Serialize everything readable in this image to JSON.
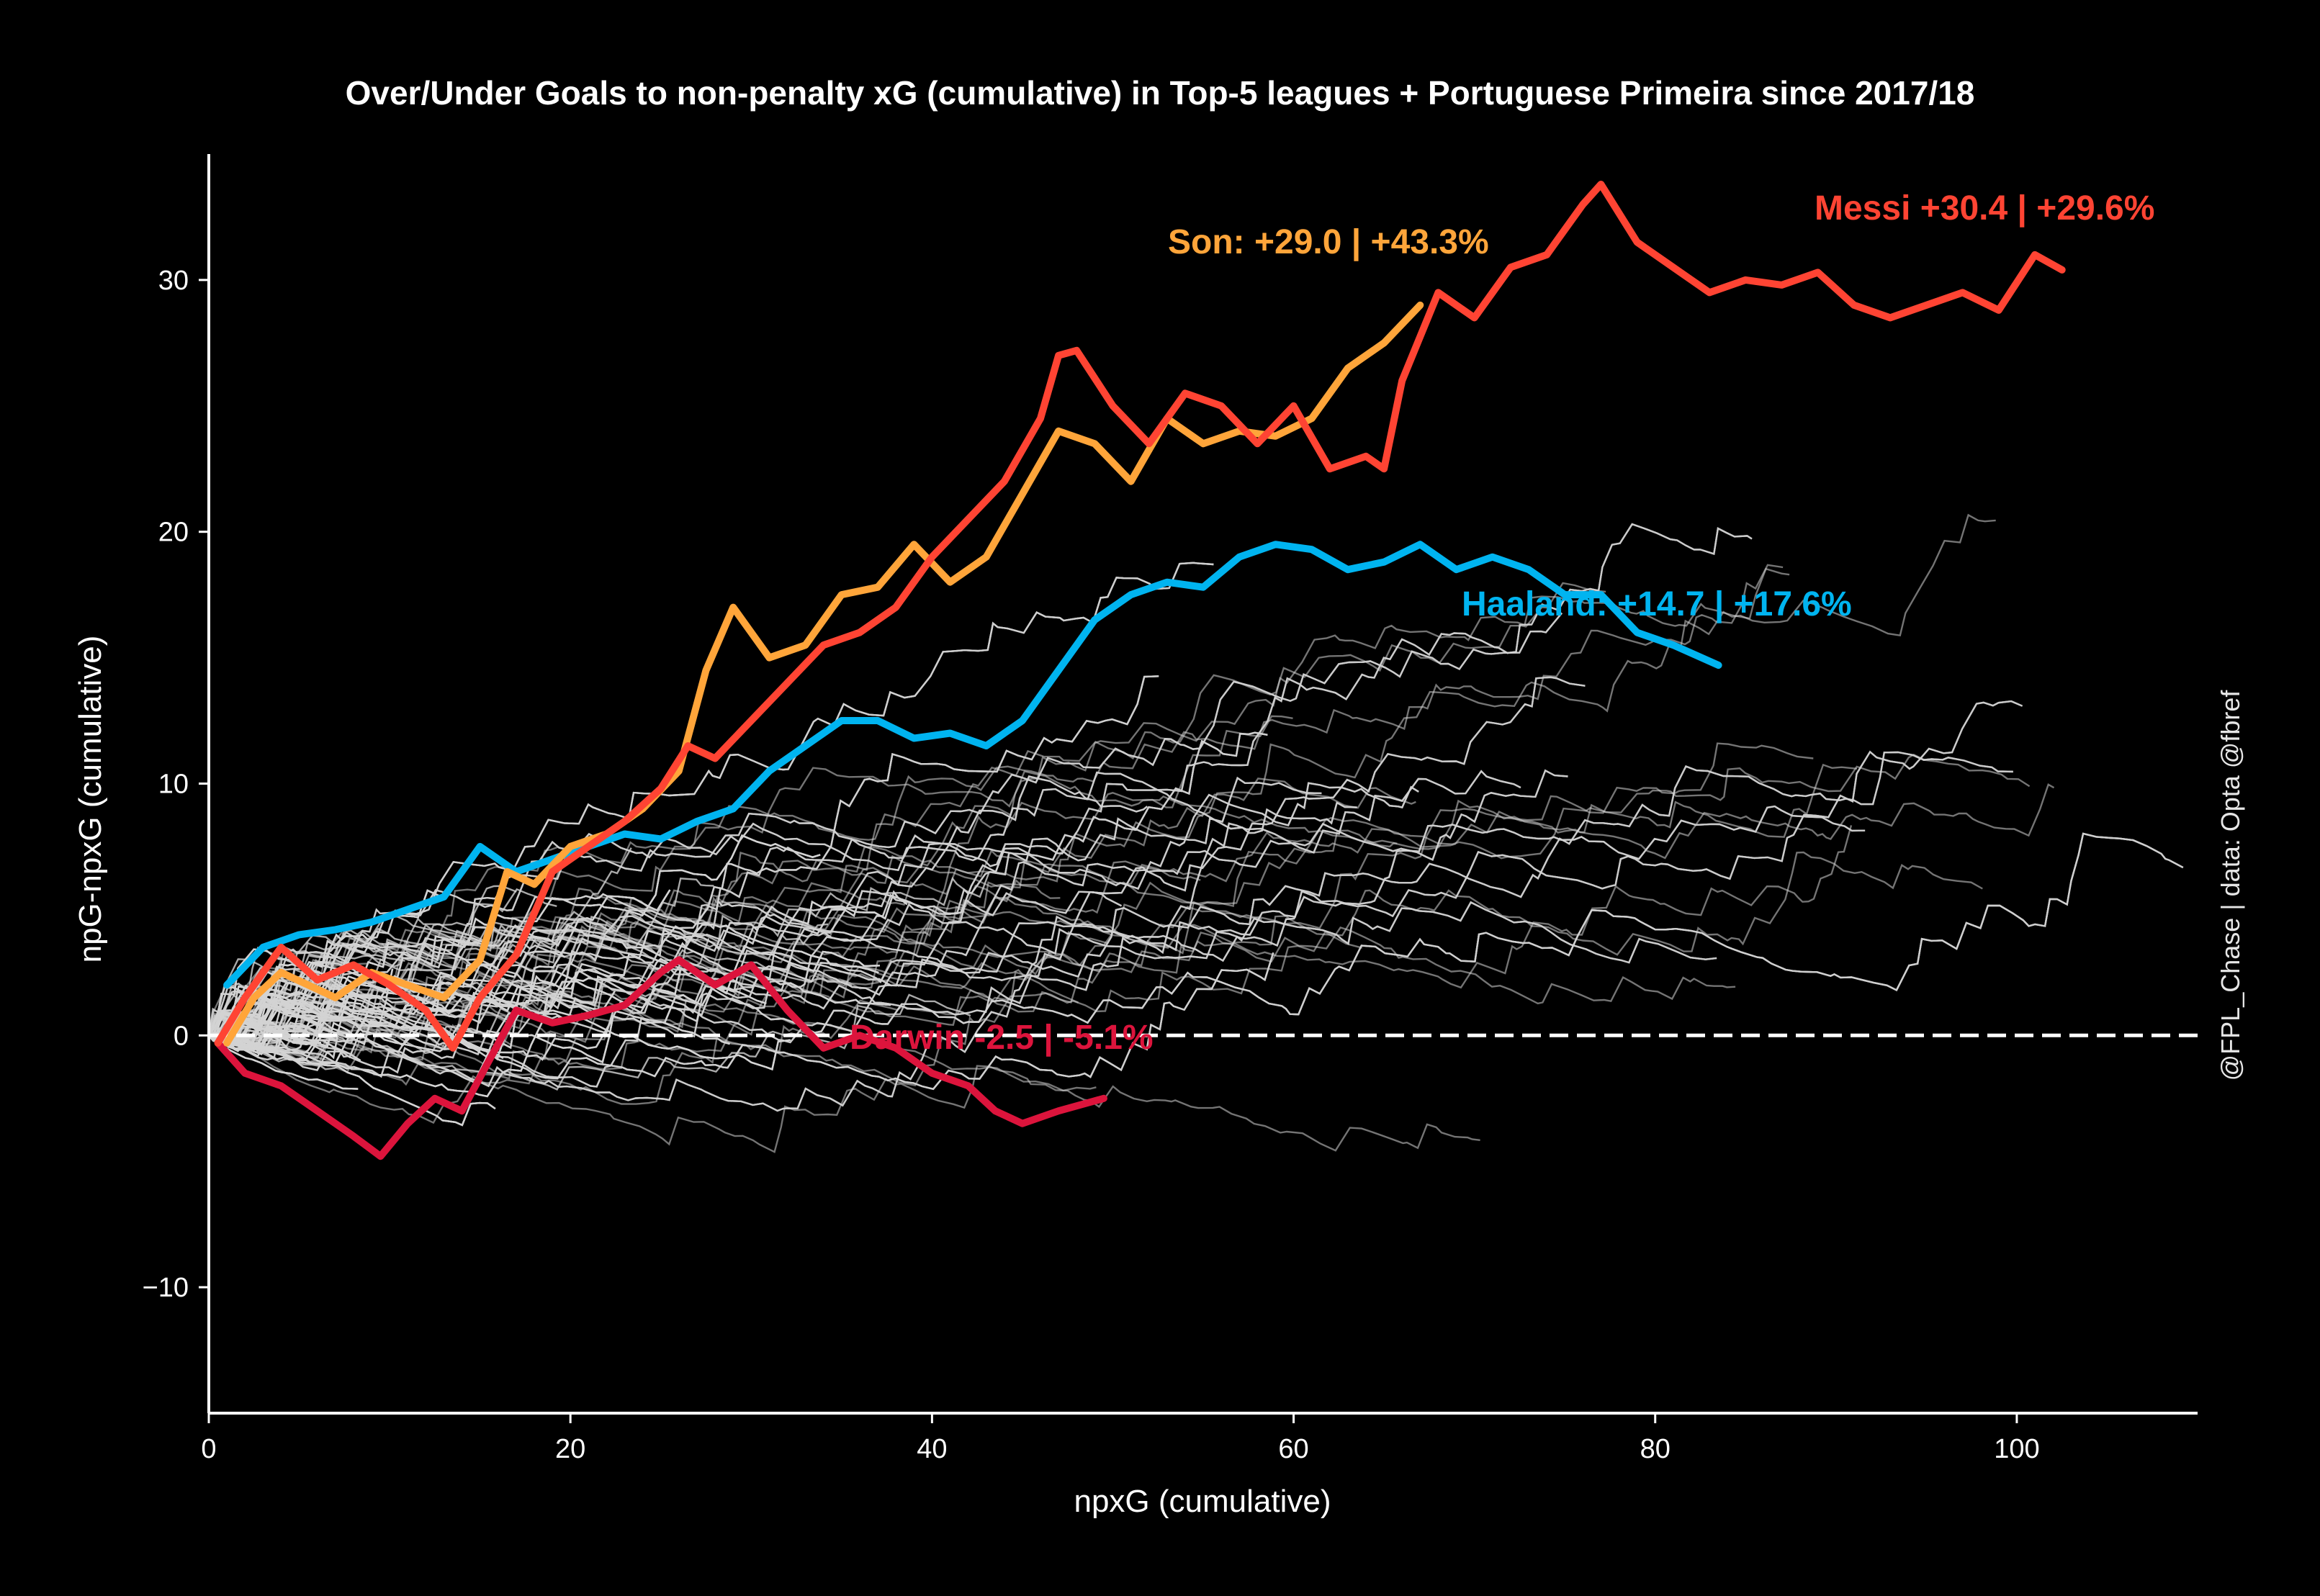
{
  "chart_data": {
    "type": "line",
    "title": "Over/Under Goals to non-penalty xG (cumulative) in Top-5 leagues + Portuguese Primeira since 2017/18",
    "xlabel": "npxG (cumulative)",
    "ylabel": "npG-npxG (cumulative)",
    "xlim": [
      0,
      110
    ],
    "ylim": [
      -15,
      35
    ],
    "x_ticks": [
      0,
      20,
      40,
      60,
      80,
      100
    ],
    "y_ticks": [
      -10,
      0,
      10,
      20,
      30
    ],
    "grid": false,
    "reference_line": {
      "y": 0,
      "style": "dashed",
      "color": "#ffffff"
    },
    "watermark": "@FPL_Chase | data: Opta @fbref",
    "background_series_color": "#d3d3d3",
    "highlighted_series": [
      {
        "label": "Messi +30.4 | +29.6%",
        "color": "#ff4433",
        "x": [
          0.5,
          2,
          4,
          6,
          8,
          10,
          12,
          13.5,
          15,
          17,
          19,
          21,
          23,
          25,
          26.5,
          28,
          30,
          32,
          34,
          36,
          38,
          40,
          42,
          44,
          46,
          47,
          48,
          50,
          52,
          54,
          56,
          58,
          60,
          62,
          64,
          65,
          66,
          68,
          70,
          72,
          74,
          76,
          77,
          79,
          81,
          83,
          85,
          87,
          89,
          91,
          93,
          95,
          97,
          99,
          101,
          102.5
        ],
        "y": [
          -0.3,
          1.5,
          3.5,
          2.2,
          2.8,
          2.0,
          1.0,
          -0.5,
          1.5,
          3.2,
          6.5,
          7.5,
          8.5,
          9.8,
          11.5,
          11.0,
          12.5,
          14.0,
          15.5,
          16.0,
          17.0,
          19.0,
          20.5,
          22.0,
          24.5,
          27.0,
          27.2,
          25.0,
          23.5,
          25.5,
          25.0,
          23.5,
          25.0,
          22.5,
          23.0,
          22.5,
          26.0,
          29.5,
          28.5,
          30.5,
          31.0,
          33.0,
          33.8,
          31.5,
          30.5,
          29.5,
          30.0,
          29.8,
          30.3,
          29.0,
          28.5,
          29.0,
          29.5,
          28.8,
          31.0,
          30.4
        ]
      },
      {
        "label": "Son: +29.0 | +43.3%",
        "color": "#ffa53a",
        "x": [
          1,
          2.5,
          4,
          5.5,
          7,
          9,
          11,
          13,
          15,
          16.5,
          18,
          20,
          22,
          24,
          26,
          27.5,
          29,
          31,
          33,
          35,
          37,
          39,
          41,
          43,
          45,
          47,
          49,
          51,
          53,
          55,
          57,
          59,
          61,
          63,
          65,
          67
        ],
        "y": [
          -0.3,
          1.5,
          2.5,
          2.0,
          1.5,
          2.5,
          2.0,
          1.5,
          3.0,
          6.5,
          6.0,
          7.5,
          8.0,
          9.0,
          10.5,
          14.5,
          17.0,
          15.0,
          15.5,
          17.5,
          17.8,
          19.5,
          18.0,
          19.0,
          21.5,
          24.0,
          23.5,
          22.0,
          24.5,
          23.5,
          24.0,
          23.8,
          24.5,
          26.5,
          27.5,
          29.0
        ]
      },
      {
        "label": "Haaland: +14.7 | +17.6%",
        "color": "#00b4f0",
        "x": [
          1,
          3,
          5,
          7,
          9,
          11,
          13,
          15,
          17,
          19,
          21,
          23,
          25,
          27,
          29,
          31,
          33,
          35,
          37,
          39,
          41,
          43,
          45,
          47,
          49,
          51,
          53,
          55,
          57,
          59,
          61,
          63,
          65,
          67,
          69,
          71,
          73,
          75,
          77,
          79,
          81,
          83.5
        ],
        "y": [
          2.0,
          3.5,
          4.0,
          4.2,
          4.5,
          5.0,
          5.5,
          7.5,
          6.5,
          7.0,
          7.5,
          8.0,
          7.8,
          8.5,
          9.0,
          10.5,
          11.5,
          12.5,
          12.5,
          11.8,
          12.0,
          11.5,
          12.5,
          14.5,
          16.5,
          17.5,
          18.0,
          17.8,
          19.0,
          19.5,
          19.3,
          18.5,
          18.8,
          19.5,
          18.5,
          19.0,
          18.5,
          17.5,
          17.5,
          16.0,
          15.5,
          14.7
        ]
      },
      {
        "label": "Darwin -2.5 | -5.1%",
        "color": "#dc143c",
        "x": [
          0.5,
          2,
          4,
          6,
          8,
          9.5,
          11,
          12.5,
          14,
          15.5,
          17,
          19,
          21,
          23,
          25,
          26,
          28,
          30,
          32,
          34,
          36,
          38,
          40,
          42,
          43.5,
          45,
          47,
          49.5
        ],
        "y": [
          -0.3,
          -1.5,
          -2.0,
          -3.0,
          -4.0,
          -4.8,
          -3.5,
          -2.5,
          -3.0,
          -1.0,
          1.0,
          0.5,
          0.8,
          1.2,
          2.5,
          3.0,
          2.0,
          2.8,
          1.0,
          -0.5,
          0.0,
          -0.5,
          -1.5,
          -2.0,
          -3.0,
          -3.5,
          -3.0,
          -2.5
        ]
      }
    ]
  }
}
